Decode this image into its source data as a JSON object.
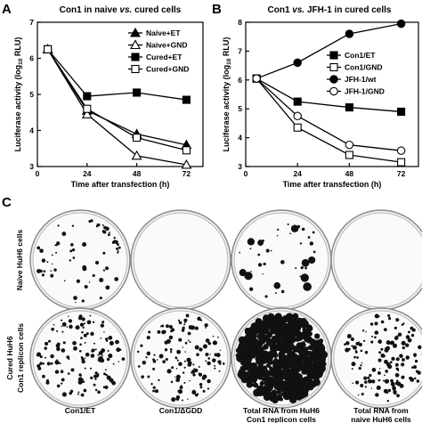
{
  "panels": {
    "A": {
      "letter": "A",
      "title_parts": [
        "Con1 in naive ",
        "vs.",
        " cured cells"
      ]
    },
    "B": {
      "letter": "B",
      "title_parts": [
        "Con1 ",
        "vs.",
        " JFH-1 in cured cells"
      ]
    },
    "C": {
      "letter": "C",
      "row_labels": [
        [
          "Naive HuH6 cells"
        ],
        [
          "Cured HuH6",
          "Con1 replicon cells"
        ]
      ],
      "column_captions": [
        [
          "Con1/ET"
        ],
        [
          "Con1/ΔGDD"
        ],
        [
          "Total RNA from HuH6",
          "Con1 replicon cells"
        ],
        [
          "Total RNA from",
          "naive HuH6 cells"
        ]
      ],
      "colony_density": [
        [
          "sparse",
          "none",
          "medium",
          "none"
        ],
        [
          "many",
          "many",
          "confluent",
          "many"
        ]
      ]
    }
  },
  "chart_data": [
    {
      "type": "line",
      "panel": "A",
      "xlabel": "Time after transfection (h)",
      "ylabel_main": "Luciferase activity (log",
      "ylabel_sub": "10",
      "ylabel_tail": " RLU)",
      "xticks": [
        0,
        24,
        48,
        72
      ],
      "yticks": [
        3,
        4,
        5,
        6,
        7
      ],
      "xlim": [
        0,
        80
      ],
      "ylim": [
        3,
        7
      ],
      "legend_position": "top-right",
      "x": [
        5,
        24,
        48,
        72
      ],
      "series": [
        {
          "name": "Naive+ET",
          "marker": "triangle-filled",
          "values": [
            6.25,
            4.55,
            3.9,
            3.6
          ]
        },
        {
          "name": "Naive+GND",
          "marker": "triangle-open",
          "values": [
            6.25,
            4.45,
            3.3,
            3.05
          ]
        },
        {
          "name": "Cured+ET",
          "marker": "square-filled",
          "values": [
            6.25,
            4.95,
            5.05,
            4.85
          ]
        },
        {
          "name": "Cured+GND",
          "marker": "square-open",
          "values": [
            6.25,
            4.6,
            3.8,
            3.45
          ]
        }
      ]
    },
    {
      "type": "line",
      "panel": "B",
      "xlabel": "Time after transfection (h)",
      "ylabel_main": "Luciferase activity (log",
      "ylabel_sub": "10",
      "ylabel_tail": " RLU)",
      "xticks": [
        0,
        24,
        48,
        72
      ],
      "yticks": [
        3,
        4,
        5,
        6,
        7,
        8
      ],
      "xlim": [
        0,
        80
      ],
      "ylim": [
        3,
        8
      ],
      "legend_position": "right",
      "x": [
        5,
        24,
        48,
        72
      ],
      "series": [
        {
          "name": "Con1/ET",
          "marker": "square-filled",
          "values": [
            6.05,
            5.25,
            5.05,
            4.9
          ]
        },
        {
          "name": "Con1/GND",
          "marker": "square-open",
          "values": [
            6.05,
            4.35,
            3.4,
            3.15
          ]
        },
        {
          "name": "JFH-1/wt",
          "marker": "circle-filled",
          "values": [
            6.05,
            6.6,
            7.6,
            7.95
          ]
        },
        {
          "name": "JFH-1/GND",
          "marker": "circle-open",
          "values": [
            6.05,
            4.75,
            3.75,
            3.55
          ]
        }
      ]
    }
  ]
}
